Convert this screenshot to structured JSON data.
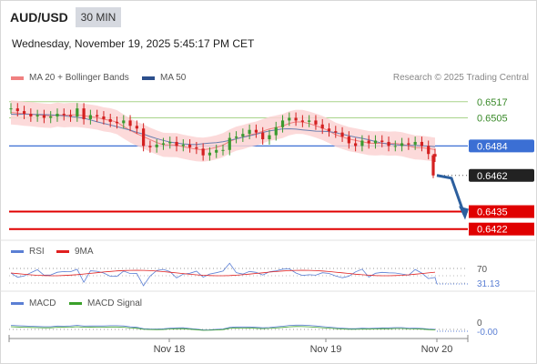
{
  "header": {
    "symbol": "AUD/USD",
    "timeframe": "30 MIN",
    "datetime": "Wednesday, November 19, 2025 5:45:17 PM CET"
  },
  "legend": {
    "items": [
      {
        "label": "MA 20 + Bollinger Bands",
        "color": "#f08080"
      },
      {
        "label": "MA 50",
        "color": "#2c4f8c"
      }
    ],
    "credit": "Research © 2025 Trading Central"
  },
  "chart_data": {
    "type": "candlestick",
    "price_range": [
      0.6415,
      0.6525
    ],
    "price_points": [
      0.6512,
      0.651,
      0.6508,
      0.6506,
      0.6507,
      0.6505,
      0.6506,
      0.6508,
      0.6507,
      0.6506,
      0.6512,
      0.6504,
      0.6507,
      0.6506,
      0.6504,
      0.6502,
      0.6501,
      0.6503,
      0.6499,
      0.6497,
      0.6484,
      0.6483,
      0.6485,
      0.6486,
      0.6487,
      0.6484,
      0.6485,
      0.6483,
      0.6482,
      0.6477,
      0.6479,
      0.6481,
      0.6481,
      0.649,
      0.6491,
      0.6493,
      0.6496,
      0.6494,
      0.6489,
      0.6492,
      0.6498,
      0.6503,
      0.6505,
      0.6503,
      0.6502,
      0.6503,
      0.65,
      0.6497,
      0.6495,
      0.6494,
      0.6491,
      0.6486,
      0.6484,
      0.6488,
      0.6486,
      0.6488,
      0.6487,
      0.6484,
      0.6484,
      0.6486,
      0.6485,
      0.6487,
      0.6484,
      0.6478,
      0.6476
    ],
    "horizontal_levels": [
      {
        "label": "0.6517",
        "value": 0.6517,
        "kind": "resistance"
      },
      {
        "label": "0.6505",
        "value": 0.6505,
        "kind": "resistance"
      },
      {
        "label": "0.6484",
        "value": 0.6484,
        "kind": "pivot"
      },
      {
        "label": "0.6462",
        "value": 0.6462,
        "kind": "last"
      },
      {
        "label": "0.6435",
        "value": 0.6435,
        "kind": "support"
      },
      {
        "label": "0.6422",
        "value": 0.6422,
        "kind": "support"
      }
    ],
    "x_labels": [
      "Nov 18",
      "Nov 19",
      "Nov 20"
    ],
    "forecast_arrow": {
      "from": 0.6462,
      "to": 0.6433
    }
  },
  "rsi": {
    "legend": [
      {
        "label": "RSI",
        "color": "#5b7fd4"
      },
      {
        "label": "9MA",
        "color": "#e02020"
      }
    ],
    "level_label": "70",
    "value_label": "31.13"
  },
  "macd": {
    "legend": [
      {
        "label": "MACD",
        "color": "#5b7fd4"
      },
      {
        "label": "MACD Signal",
        "color": "#3aa02a"
      }
    ],
    "zero_label": "0",
    "value_label": "-0.00"
  },
  "colors": {
    "up": "#3a9a2f",
    "down": "#d42020",
    "band_fill": "#fbd3d3",
    "ma50": "#6a7fb0",
    "support": "#e00000",
    "resistance": "#a8d48a",
    "pivot": "#3b6fd4",
    "last": "#222222"
  }
}
